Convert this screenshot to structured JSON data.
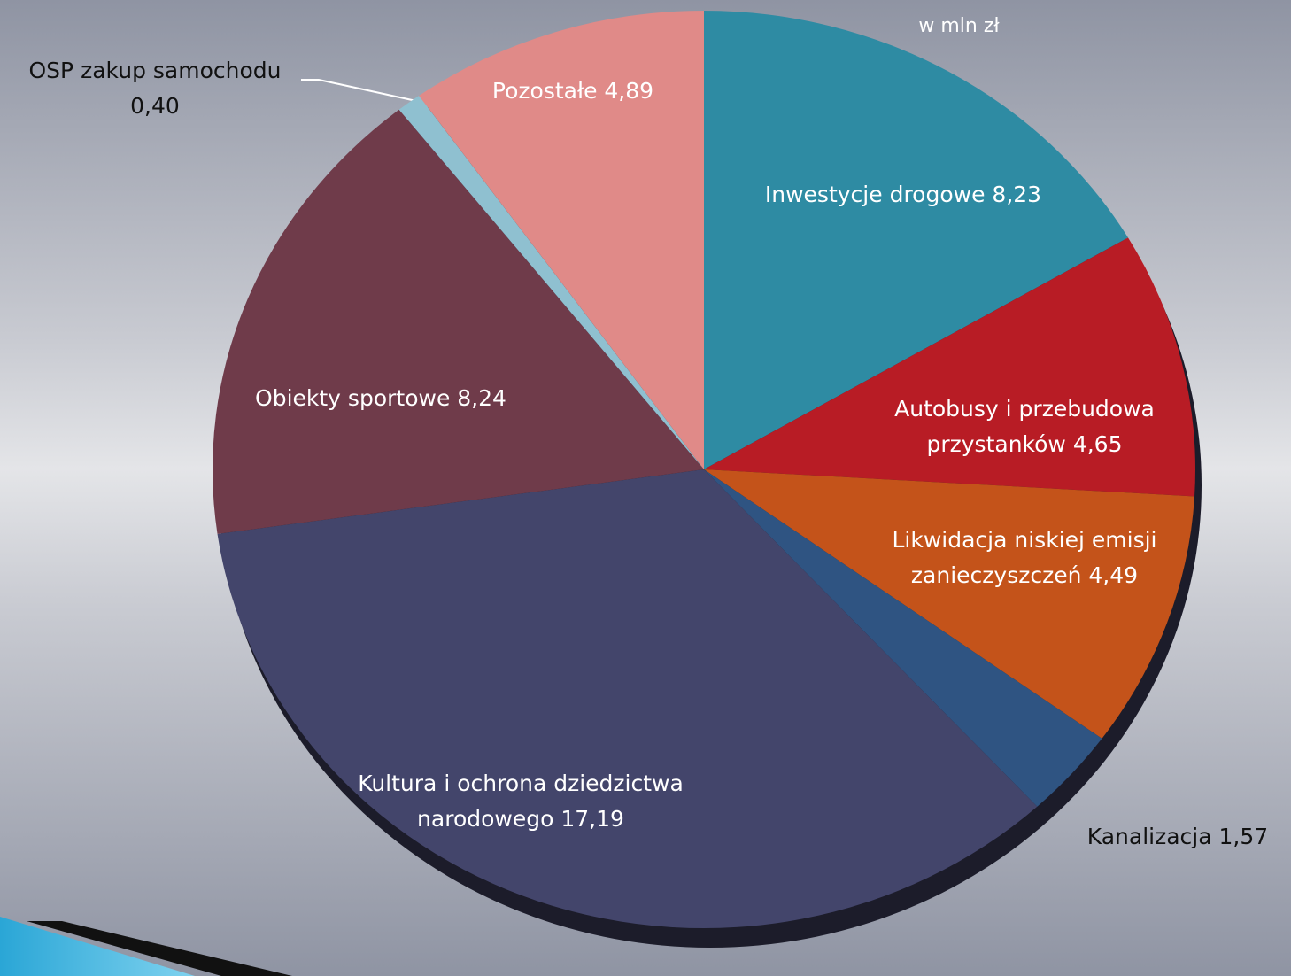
{
  "chart_data": {
    "type": "pie",
    "title": "w mln zł",
    "categories": [
      "Inwestycje drogowe",
      "Autobusy i przebudowa przystanków",
      "Likwidacja niskiej emisji zanieczyszczeń",
      "Kanalizacja",
      "Kultura i ochrona dziedzictwa narodowego",
      "Obiekty sportowe",
      "OSP zakup samochodu",
      "Pozostałe"
    ],
    "values": [
      8.23,
      4.65,
      4.49,
      1.57,
      17.19,
      8.24,
      0.4,
      4.89
    ],
    "value_labels": [
      "8,23",
      "4,65",
      "4,49",
      "1,57",
      "17,19",
      "8,24",
      "0,40",
      "4,89"
    ],
    "colors": [
      "#2e8ba3",
      "#b81c25",
      "#c4531a",
      "#2f5482",
      "#43456b",
      "#6f3b4a",
      "#8fc0d0",
      "#e08a88"
    ]
  }
}
